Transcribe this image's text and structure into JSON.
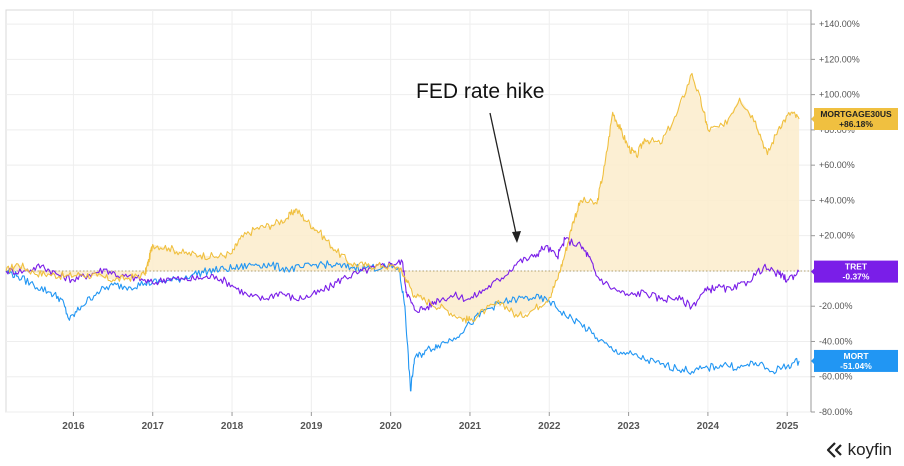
{
  "chart_data": {
    "type": "line",
    "annotation": "FED rate hike",
    "y_ticks": [
      "+140.00%",
      "+120.00%",
      "+100.00%",
      "+80.00%",
      "+60.00%",
      "+40.00%",
      "+20.00%",
      "0.00%",
      "-20.00%",
      "-40.00%",
      "-60.00%",
      "-80.00%"
    ],
    "y_tick_values": [
      140,
      120,
      100,
      80,
      60,
      40,
      20,
      0,
      -20,
      -40,
      -60,
      -80
    ],
    "ylim": [
      -80,
      148
    ],
    "x_ticks": [
      "2016",
      "2017",
      "2018",
      "2019",
      "2020",
      "2021",
      "2022",
      "2023",
      "2024",
      "2025"
    ],
    "x_tick_values": [
      2016,
      2017,
      2018,
      2019,
      2020,
      2021,
      2022,
      2023,
      2024,
      2025
    ],
    "xlim": [
      2015.15,
      2025.3
    ],
    "series": [
      {
        "name": "MORTGAGE30US",
        "last_label": "+86.18%",
        "color": "#f0c040",
        "fill": true,
        "points": [
          [
            2015.15,
            0
          ],
          [
            2015.3,
            4
          ],
          [
            2015.5,
            -1
          ],
          [
            2015.7,
            -2
          ],
          [
            2015.9,
            -3
          ],
          [
            2016.1,
            -2
          ],
          [
            2016.3,
            -3
          ],
          [
            2016.5,
            -5
          ],
          [
            2016.7,
            -4
          ],
          [
            2016.9,
            -2
          ],
          [
            2016.95,
            6
          ],
          [
            2017.0,
            15
          ],
          [
            2017.2,
            13
          ],
          [
            2017.4,
            10
          ],
          [
            2017.6,
            9
          ],
          [
            2017.8,
            8
          ],
          [
            2018.0,
            10
          ],
          [
            2018.1,
            18
          ],
          [
            2018.3,
            24
          ],
          [
            2018.5,
            26
          ],
          [
            2018.7,
            30
          ],
          [
            2018.8,
            35
          ],
          [
            2018.95,
            28
          ],
          [
            2019.1,
            22
          ],
          [
            2019.3,
            12
          ],
          [
            2019.5,
            4
          ],
          [
            2019.7,
            3
          ],
          [
            2019.9,
            3
          ],
          [
            2020.1,
            2
          ],
          [
            2020.2,
            -5
          ],
          [
            2020.3,
            -14
          ],
          [
            2020.5,
            -18
          ],
          [
            2020.7,
            -22
          ],
          [
            2020.9,
            -27
          ],
          [
            2021.0,
            -28
          ],
          [
            2021.2,
            -22
          ],
          [
            2021.4,
            -18
          ],
          [
            2021.6,
            -26
          ],
          [
            2021.8,
            -22
          ],
          [
            2022.0,
            -15
          ],
          [
            2022.1,
            -5
          ],
          [
            2022.2,
            10
          ],
          [
            2022.3,
            28
          ],
          [
            2022.4,
            40
          ],
          [
            2022.6,
            38
          ],
          [
            2022.7,
            60
          ],
          [
            2022.8,
            90
          ],
          [
            2022.9,
            80
          ],
          [
            2023.0,
            70
          ],
          [
            2023.1,
            65
          ],
          [
            2023.2,
            75
          ],
          [
            2023.4,
            72
          ],
          [
            2023.6,
            88
          ],
          [
            2023.8,
            112
          ],
          [
            2023.95,
            90
          ],
          [
            2024.0,
            80
          ],
          [
            2024.2,
            82
          ],
          [
            2024.4,
            98
          ],
          [
            2024.6,
            85
          ],
          [
            2024.75,
            66
          ],
          [
            2024.9,
            82
          ],
          [
            2025.05,
            90
          ],
          [
            2025.15,
            86.18
          ]
        ]
      },
      {
        "name": "TRET",
        "last_label": "-0.37%",
        "color": "#7a1ee8",
        "fill": false,
        "points": [
          [
            2015.15,
            0
          ],
          [
            2015.4,
            0
          ],
          [
            2015.6,
            3
          ],
          [
            2015.8,
            -2
          ],
          [
            2016.0,
            -5
          ],
          [
            2016.2,
            -2
          ],
          [
            2016.4,
            1
          ],
          [
            2016.6,
            -3
          ],
          [
            2016.8,
            -4
          ],
          [
            2017.0,
            -7
          ],
          [
            2017.2,
            -4
          ],
          [
            2017.4,
            -5
          ],
          [
            2017.6,
            -4
          ],
          [
            2017.8,
            -3
          ],
          [
            2018.0,
            -8
          ],
          [
            2018.2,
            -14
          ],
          [
            2018.4,
            -16
          ],
          [
            2018.6,
            -12
          ],
          [
            2018.8,
            -16
          ],
          [
            2019.0,
            -14
          ],
          [
            2019.2,
            -10
          ],
          [
            2019.4,
            -4
          ],
          [
            2019.6,
            -1
          ],
          [
            2019.8,
            2
          ],
          [
            2020.0,
            4
          ],
          [
            2020.15,
            5
          ],
          [
            2020.2,
            -12
          ],
          [
            2020.3,
            -22
          ],
          [
            2020.45,
            -21
          ],
          [
            2020.6,
            -16
          ],
          [
            2020.8,
            -14
          ],
          [
            2021.0,
            -16
          ],
          [
            2021.2,
            -10
          ],
          [
            2021.4,
            -4
          ],
          [
            2021.6,
            5
          ],
          [
            2021.8,
            8
          ],
          [
            2021.95,
            14
          ],
          [
            2022.1,
            8
          ],
          [
            2022.2,
            18
          ],
          [
            2022.4,
            14
          ],
          [
            2022.5,
            8
          ],
          [
            2022.6,
            -3
          ],
          [
            2022.8,
            -10
          ],
          [
            2023.0,
            -14
          ],
          [
            2023.2,
            -12
          ],
          [
            2023.4,
            -16
          ],
          [
            2023.6,
            -15
          ],
          [
            2023.8,
            -20
          ],
          [
            2023.95,
            -12
          ],
          [
            2024.1,
            -9
          ],
          [
            2024.3,
            -11
          ],
          [
            2024.5,
            -6
          ],
          [
            2024.7,
            2
          ],
          [
            2024.9,
            -2
          ],
          [
            2025.0,
            -5
          ],
          [
            2025.15,
            -0.37
          ]
        ]
      },
      {
        "name": "MORT",
        "last_label": "-51.04%",
        "color": "#2196f3",
        "fill": false,
        "points": [
          [
            2015.15,
            0
          ],
          [
            2015.3,
            -3
          ],
          [
            2015.5,
            -8
          ],
          [
            2015.7,
            -12
          ],
          [
            2015.85,
            -16
          ],
          [
            2015.95,
            -28
          ],
          [
            2016.1,
            -20
          ],
          [
            2016.3,
            -12
          ],
          [
            2016.5,
            -8
          ],
          [
            2016.7,
            -9
          ],
          [
            2016.9,
            -7
          ],
          [
            2017.1,
            -6
          ],
          [
            2017.3,
            -5
          ],
          [
            2017.5,
            -2
          ],
          [
            2017.7,
            0
          ],
          [
            2017.9,
            1
          ],
          [
            2018.1,
            2
          ],
          [
            2018.3,
            4
          ],
          [
            2018.5,
            3
          ],
          [
            2018.7,
            1
          ],
          [
            2018.9,
            2
          ],
          [
            2019.1,
            4
          ],
          [
            2019.3,
            3
          ],
          [
            2019.5,
            2
          ],
          [
            2019.7,
            2
          ],
          [
            2019.9,
            2
          ],
          [
            2020.1,
            2
          ],
          [
            2020.18,
            -20
          ],
          [
            2020.25,
            -68
          ],
          [
            2020.3,
            -50
          ],
          [
            2020.45,
            -45
          ],
          [
            2020.6,
            -42
          ],
          [
            2020.8,
            -38
          ],
          [
            2021.0,
            -30
          ],
          [
            2021.2,
            -22
          ],
          [
            2021.4,
            -18
          ],
          [
            2021.6,
            -16
          ],
          [
            2021.8,
            -15
          ],
          [
            2022.0,
            -17
          ],
          [
            2022.2,
            -25
          ],
          [
            2022.4,
            -30
          ],
          [
            2022.6,
            -38
          ],
          [
            2022.8,
            -45
          ],
          [
            2023.0,
            -47
          ],
          [
            2023.2,
            -50
          ],
          [
            2023.4,
            -53
          ],
          [
            2023.6,
            -55
          ],
          [
            2023.8,
            -57
          ],
          [
            2024.0,
            -55
          ],
          [
            2024.2,
            -53
          ],
          [
            2024.4,
            -55
          ],
          [
            2024.6,
            -52
          ],
          [
            2024.8,
            -57
          ],
          [
            2025.0,
            -54
          ],
          [
            2025.15,
            -51.04
          ]
        ]
      }
    ]
  },
  "colors": {
    "mortgage": "#f0c040",
    "tret": "#7a1ee8",
    "mort": "#2196f3",
    "fill": "#fbeccb"
  },
  "brand": {
    "name": "koyfin",
    "icon": "koyfin-logo-icon"
  }
}
